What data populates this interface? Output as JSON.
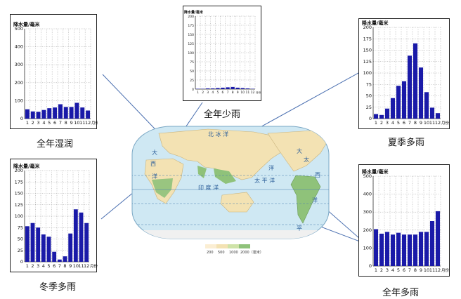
{
  "colors": {
    "bar": "#1a1aa8",
    "grid": "#9a9a9a",
    "ocean": "#cfe8f3",
    "land": "#f3e2b3",
    "wet": "#8fc27a",
    "arrow": "#4a6fb0"
  },
  "map": {
    "labels": [
      "北 冰 洋",
      "大",
      "西",
      "洋",
      "印 度 洋",
      "太 平 洋",
      "太",
      "平",
      "洋",
      "大",
      "西",
      "洋"
    ],
    "legend": [
      "200",
      "500",
      "1000",
      "2000（毫米）"
    ]
  },
  "chart_data": [
    {
      "id": "a",
      "type": "bar",
      "title": "降水量/毫米",
      "caption": "全年湿润",
      "x_unit": "月份",
      "categories": [
        "1",
        "2",
        "3",
        "4",
        "5",
        "6",
        "7",
        "8",
        "9",
        "10",
        "11",
        "12"
      ],
      "values": [
        52,
        40,
        38,
        48,
        58,
        62,
        80,
        65,
        65,
        88,
        62,
        45
      ],
      "ylim": [
        0,
        500
      ],
      "yticks": [
        0,
        100,
        200,
        300,
        400,
        500
      ],
      "grid": true
    },
    {
      "id": "b",
      "type": "bar",
      "title": "降水量/毫米",
      "caption": "全年少雨",
      "x_unit": "月份",
      "categories": [
        "1",
        "2",
        "3",
        "4",
        "5",
        "6",
        "7",
        "8",
        "9",
        "10",
        "11",
        "12"
      ],
      "values": [
        1,
        1,
        2,
        2,
        3,
        4,
        5,
        6,
        4,
        3,
        2,
        1
      ],
      "ylim": [
        0,
        200
      ],
      "yticks": [
        0,
        25,
        50,
        75,
        100,
        125,
        150,
        175,
        200
      ],
      "grid": true
    },
    {
      "id": "c",
      "type": "bar",
      "title": "降水量/毫米",
      "caption": "夏季多雨",
      "x_unit": "月份",
      "categories": [
        "1",
        "2",
        "3",
        "4",
        "5",
        "6",
        "7",
        "8",
        "9",
        "10",
        "11",
        "12"
      ],
      "values": [
        10,
        8,
        22,
        45,
        72,
        82,
        138,
        165,
        112,
        58,
        24,
        12
      ],
      "ylim": [
        0,
        200
      ],
      "yticks": [
        0,
        25,
        50,
        75,
        100,
        125,
        150,
        175,
        200
      ],
      "grid": true
    },
    {
      "id": "d",
      "type": "bar",
      "title": "降水量/毫米",
      "caption": "冬季多雨",
      "x_unit": "月份",
      "categories": [
        "1",
        "2",
        "3",
        "4",
        "5",
        "6",
        "7",
        "8",
        "9",
        "10",
        "11",
        "12"
      ],
      "values": [
        78,
        85,
        75,
        60,
        55,
        22,
        5,
        12,
        62,
        115,
        108,
        85
      ],
      "ylim": [
        0,
        200
      ],
      "yticks": [
        0,
        25,
        50,
        75,
        100,
        125,
        150,
        175,
        200
      ],
      "grid": true
    },
    {
      "id": "e",
      "type": "bar",
      "title": "降水量/毫米",
      "caption": "全年多雨",
      "x_unit": "月份",
      "categories": [
        "1",
        "2",
        "3",
        "4",
        "5",
        "6",
        "7",
        "8",
        "9",
        "10",
        "11",
        "12"
      ],
      "values": [
        205,
        180,
        190,
        175,
        185,
        175,
        175,
        175,
        190,
        190,
        250,
        305
      ],
      "ylim": [
        0,
        500
      ],
      "yticks": [
        0,
        100,
        200,
        300,
        400,
        500
      ],
      "grid": true
    }
  ]
}
